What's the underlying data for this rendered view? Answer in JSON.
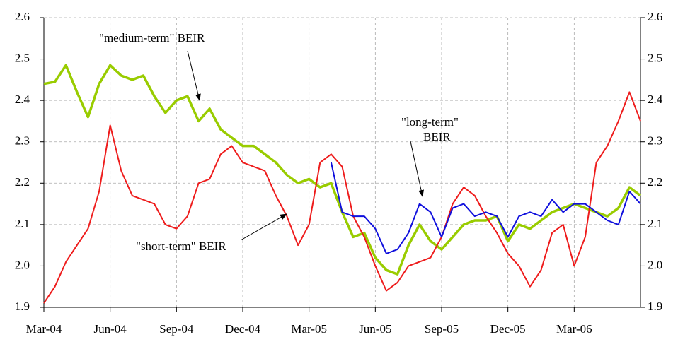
{
  "chart_data": {
    "type": "line",
    "annotations": [
      {
        "text": "\"medium-term\" BEIR"
      },
      {
        "text": "\"long-term\""
      },
      {
        "text": "BEIR"
      },
      {
        "text": "\"short-term\" BEIR"
      }
    ],
    "x": [
      0,
      0.5,
      1,
      1.5,
      2,
      2.5,
      3,
      3.5,
      4,
      4.5,
      5,
      5.5,
      6,
      6.5,
      7,
      7.5,
      8,
      8.5,
      9,
      9.5,
      10,
      10.5,
      11,
      11.5,
      12,
      12.5,
      13,
      13.5,
      14,
      14.5,
      15,
      15.5,
      16,
      16.5,
      17,
      17.5,
      18,
      18.5,
      19,
      19.5,
      20,
      20.5,
      21,
      21.5,
      22,
      22.5,
      23,
      23.5,
      24,
      24.5,
      25,
      25.5,
      26,
      26.5,
      27
    ],
    "xlim": [
      0,
      27
    ],
    "xticks": [
      {
        "value": 0,
        "label": "Mar-04"
      },
      {
        "value": 3,
        "label": "Jun-04"
      },
      {
        "value": 6,
        "label": "Sep-04"
      },
      {
        "value": 9,
        "label": "Dec-04"
      },
      {
        "value": 12,
        "label": "Mar-05"
      },
      {
        "value": 15,
        "label": "Jun-05"
      },
      {
        "value": 18,
        "label": "Sep-05"
      },
      {
        "value": 21,
        "label": "Dec-05"
      },
      {
        "value": 24,
        "label": "Mar-06"
      }
    ],
    "ylim": [
      1.9,
      2.6
    ],
    "yticks": [
      1.9,
      {
        "value": 2,
        "label": "2.0"
      },
      2.1,
      2.2,
      2.3,
      2.4,
      2.5,
      2.6
    ],
    "y2lim": [
      1.9,
      2.6
    ],
    "y2ticks": [
      1.9,
      {
        "value": 2,
        "label": "2.0"
      },
      2.1,
      2.2,
      2.3,
      2.4,
      2.5,
      2.6
    ],
    "grid": true,
    "series": [
      {
        "color": "#99cc00",
        "width": 3.5,
        "values": [
          2.44,
          2.445,
          2.485,
          2.42,
          2.36,
          2.44,
          2.485,
          2.46,
          2.45,
          2.46,
          2.41,
          2.37,
          2.4,
          2.41,
          2.35,
          2.38,
          2.33,
          2.31,
          2.29,
          2.29,
          2.27,
          2.25,
          2.22,
          2.2,
          2.21,
          2.19,
          2.2,
          2.13,
          2.07,
          2.08,
          2.02,
          1.99,
          1.98,
          2.05,
          2.1,
          2.06,
          2.04,
          2.07,
          2.1,
          2.11,
          2.11,
          2.12,
          2.06,
          2.1,
          2.09,
          2.11,
          2.13,
          2.14,
          2.15,
          2.14,
          2.13,
          2.12,
          2.14,
          2.19,
          2.17
        ]
      },
      {
        "color": "#ee1c1c",
        "width": 2,
        "values": [
          1.91,
          1.95,
          2.01,
          2.05,
          2.09,
          2.18,
          2.34,
          2.23,
          2.17,
          2.16,
          2.15,
          2.1,
          2.09,
          2.12,
          2.2,
          2.21,
          2.27,
          2.29,
          2.25,
          2.24,
          2.23,
          2.17,
          2.12,
          2.05,
          2.1,
          2.25,
          2.27,
          2.24,
          2.12,
          2.07,
          2.0,
          1.94,
          1.96,
          2.0,
          2.01,
          2.02,
          2.07,
          2.15,
          2.19,
          2.17,
          2.12,
          2.08,
          2.03,
          2.0,
          1.95,
          1.99,
          2.08,
          2.1,
          2.0,
          2.07,
          2.25,
          2.29,
          2.35,
          2.42,
          2.35
        ]
      },
      {
        "color": "#1010dd",
        "width": 2,
        "values": [
          null,
          null,
          null,
          null,
          null,
          null,
          null,
          null,
          null,
          null,
          null,
          null,
          null,
          null,
          null,
          null,
          null,
          null,
          null,
          null,
          null,
          null,
          null,
          null,
          null,
          null,
          2.25,
          2.13,
          2.12,
          2.12,
          2.09,
          2.03,
          2.04,
          2.08,
          2.15,
          2.13,
          2.07,
          2.14,
          2.15,
          2.12,
          2.13,
          2.12,
          2.07,
          2.12,
          2.13,
          2.12,
          2.16,
          2.13,
          2.15,
          2.15,
          2.13,
          2.11,
          2.1,
          2.18,
          2.15
        ]
      }
    ]
  }
}
